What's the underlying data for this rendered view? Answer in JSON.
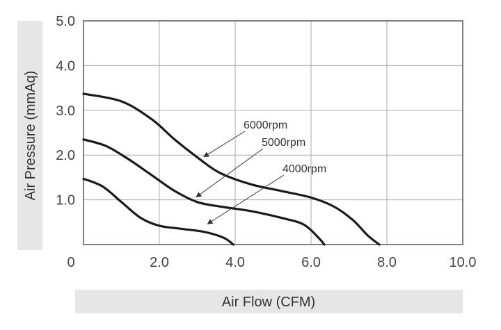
{
  "chart_data": {
    "type": "line",
    "xlabel": "Air Flow (CFM)",
    "ylabel": "Air Pressure (mmAq)",
    "xlim": [
      0,
      10
    ],
    "ylim": [
      0,
      5
    ],
    "x_ticks": [
      "0",
      "2.0",
      "4.0",
      "6.0",
      "8.0",
      "10.0"
    ],
    "y_ticks": [
      "1.0",
      "2.0",
      "3.0",
      "4.0",
      "5.0"
    ],
    "grid": true,
    "series": [
      {
        "name": "6000rpm",
        "points": [
          [
            0,
            3.37
          ],
          [
            1.0,
            3.2
          ],
          [
            1.8,
            2.8
          ],
          [
            2.4,
            2.35
          ],
          [
            3.0,
            1.95
          ],
          [
            3.6,
            1.6
          ],
          [
            4.4,
            1.35
          ],
          [
            5.2,
            1.2
          ],
          [
            6.0,
            1.05
          ],
          [
            6.6,
            0.85
          ],
          [
            7.1,
            0.55
          ],
          [
            7.5,
            0.2
          ],
          [
            7.8,
            0
          ]
        ],
        "label_anchor": [
          3.1,
          1.9
        ]
      },
      {
        "name": "5000rpm",
        "points": [
          [
            0,
            2.35
          ],
          [
            0.6,
            2.2
          ],
          [
            1.2,
            1.9
          ],
          [
            1.8,
            1.55
          ],
          [
            2.4,
            1.2
          ],
          [
            3.0,
            0.95
          ],
          [
            3.6,
            0.85
          ],
          [
            4.4,
            0.75
          ],
          [
            5.2,
            0.6
          ],
          [
            5.8,
            0.45
          ],
          [
            6.2,
            0.15
          ],
          [
            6.35,
            0
          ]
        ],
        "label_anchor": [
          2.9,
          1.0
        ]
      },
      {
        "name": "4000rpm",
        "points": [
          [
            0,
            1.47
          ],
          [
            0.5,
            1.3
          ],
          [
            1.0,
            0.95
          ],
          [
            1.5,
            0.6
          ],
          [
            2.0,
            0.42
          ],
          [
            2.6,
            0.35
          ],
          [
            3.2,
            0.28
          ],
          [
            3.7,
            0.15
          ],
          [
            3.95,
            0
          ]
        ],
        "label_anchor": [
          3.2,
          0.4
        ]
      }
    ]
  }
}
